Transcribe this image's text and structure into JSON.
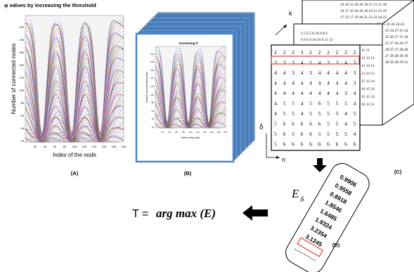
{
  "panelA": {
    "title": "φ values by increasing the threshold",
    "ylabel": "Number of connected nodes",
    "xlabel": "Index of the node",
    "yticks": [
      "20",
      "40",
      "60",
      "80",
      "100",
      "120",
      "140",
      "160",
      "180",
      "200"
    ],
    "xticks": [
      "20",
      "40",
      "60",
      "80",
      "100",
      "120",
      "140",
      "160",
      "180",
      "200"
    ],
    "caption": "(A)"
  },
  "panelB": {
    "title": "Increasing δ",
    "ylabel": "Number of connected pixels",
    "xlabel": "Index of the pixel",
    "yticks": [
      "20",
      "40",
      "60",
      "80",
      "100",
      "120",
      "140",
      "160",
      "180",
      "200"
    ],
    "xticks": [
      "20",
      "40",
      "60",
      "80",
      "100",
      "120",
      "140",
      "160",
      "180",
      "200"
    ],
    "caption": "(B)"
  },
  "panelC": {
    "axis_k": "k",
    "axis_delta": "δ",
    "axis_n": "n",
    "caption": "(C)",
    "front_grid": [
      [
        "2",
        "2",
        "2",
        "3",
        "2",
        "2",
        "2",
        "2",
        "2",
        "2"
      ],
      [
        "3",
        "3",
        "3",
        "4",
        "2",
        "4",
        "3",
        "3",
        "4",
        "3"
      ],
      [
        "4",
        "4",
        "3",
        "4",
        "3",
        "4",
        "4",
        "4",
        "4",
        "3"
      ],
      [
        "4",
        "4",
        "4",
        "4",
        "4",
        "4",
        "4",
        "4",
        "4",
        "3"
      ],
      [
        "4",
        "4",
        "4",
        "4",
        "4",
        "4",
        "4",
        "4",
        "3",
        "4"
      ],
      [
        "4",
        "5",
        "5",
        "4",
        "5",
        "6",
        "5",
        "5",
        "5",
        "4"
      ],
      [
        "4",
        "5",
        "5",
        "4",
        "5",
        "5",
        "5",
        "5",
        "4",
        "5"
      ],
      [
        "5",
        "6",
        "6",
        "6",
        "6",
        "6",
        "5",
        "5",
        "4",
        "5"
      ],
      [
        "5",
        "6",
        "5",
        "6",
        "6",
        "5",
        "5",
        "5",
        "5",
        "4"
      ],
      [
        "5",
        "6",
        "6",
        "6",
        "6",
        "6",
        "6",
        "6",
        "6",
        "6"
      ]
    ],
    "mid_rows": [
      [
        "5",
        "5",
        "6",
        "5",
        "8",
        "10",
        "9",
        "8",
        "9"
      ],
      [
        "6",
        "6",
        "6",
        "9",
        "10",
        "10",
        "9",
        "11",
        "12"
      ]
    ],
    "mid_right_rows": [
      [
        "11",
        "11"
      ],
      [
        "12",
        "13",
        "11"
      ],
      [
        "13",
        "13",
        "11"
      ],
      [
        "13",
        "14",
        "13"
      ],
      [
        "15",
        "13",
        "14"
      ],
      [
        "16",
        "15",
        "14"
      ],
      [
        "15",
        "15",
        "14"
      ],
      [
        "16",
        "15",
        "15"
      ]
    ],
    "back_rows": [
      [
        "16",
        "16",
        "15",
        "18",
        "18",
        "19",
        "17",
        "21",
        "21",
        "18"
      ],
      [
        "16",
        "17",
        "16",
        "18",
        "20",
        "18",
        "19",
        "21",
        "22",
        "19"
      ],
      [
        "17",
        "12",
        "17",
        "19",
        "20",
        "21",
        "22",
        "23",
        "24",
        "22"
      ],
      [
        "15",
        "25",
        "25",
        "24",
        "24",
        "23"
      ],
      [
        "25",
        "24",
        "27",
        "25",
        "24"
      ],
      [
        "25",
        "26",
        "27",
        "25",
        "26"
      ],
      [
        "25",
        "27",
        "26",
        "26",
        "27"
      ],
      [
        "28",
        "27",
        "27",
        "28",
        "28"
      ],
      [
        "27",
        "28",
        "28",
        "30",
        "29"
      ],
      [
        "28",
        "29",
        "28",
        "29",
        "31"
      ]
    ]
  },
  "panelD": {
    "symbol": "E",
    "subscript": "δ",
    "values": [
      "0.9906",
      "0.9558",
      "0.8918",
      "1.8546",
      "1.6485",
      "1.9324",
      "3.2354",
      "3.1245"
    ],
    "caption": "(D)"
  },
  "formula": {
    "lhs": "T =",
    "rhs": "arg max (E)"
  },
  "colors": {
    "stack_blue": "#4f86c6",
    "stack_dark": "#2e5f97",
    "highlight_red": "#d9221b",
    "grid_line": "#000000"
  }
}
